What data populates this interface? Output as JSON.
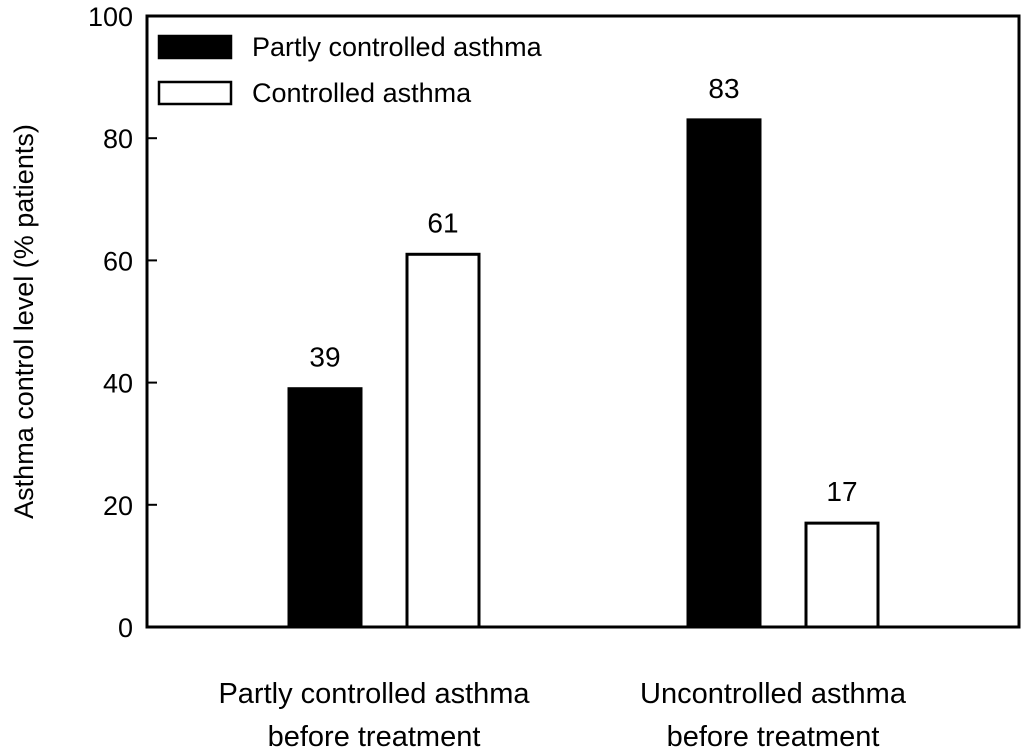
{
  "chart_data": {
    "type": "bar",
    "title": "",
    "xlabel": "",
    "ylabel": "Asthma control level (% patients)",
    "ylim": [
      0,
      100
    ],
    "yticks": [
      0,
      20,
      40,
      60,
      80,
      100
    ],
    "grid": false,
    "legend_position": "top-left",
    "categories": [
      [
        "Partly controlled asthma",
        "before treatment"
      ],
      [
        "Uncontrolled asthma",
        "before treatment"
      ]
    ],
    "series": [
      {
        "name": "Partly controlled asthma",
        "fill": "#000000",
        "values": [
          39,
          83
        ],
        "labels": [
          "39",
          "83"
        ]
      },
      {
        "name": "Controlled asthma",
        "fill": "#ffffff",
        "values": [
          61,
          17
        ],
        "labels": [
          "61",
          "17"
        ]
      }
    ]
  }
}
